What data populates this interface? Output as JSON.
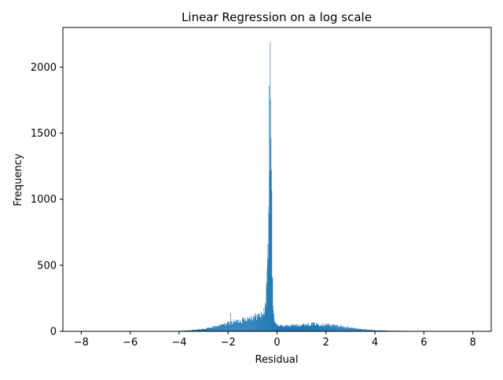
{
  "chart_data": {
    "type": "bar",
    "title": "Linear Regression on a log scale",
    "xlabel": "Residual",
    "ylabel": "Frequency",
    "xlim": [
      -8.75,
      8.75
    ],
    "ylim": [
      0,
      2300
    ],
    "xticks": [
      -8,
      -6,
      -4,
      -2,
      0,
      2,
      4,
      6,
      8
    ],
    "xtick_labels": [
      "−8",
      "−6",
      "−4",
      "−2",
      "0",
      "2",
      "4",
      "6",
      "8"
    ],
    "yticks": [
      0,
      500,
      1000,
      1500,
      2000
    ],
    "ytick_labels": [
      "0",
      "500",
      "1000",
      "1500",
      "2000"
    ],
    "bar_color": "#1f77b4",
    "grid": false,
    "legend": "none",
    "histogram_profile": {
      "x": [
        -8.0,
        -6.0,
        -5.0,
        -4.5,
        -4.0,
        -3.5,
        -3.0,
        -2.5,
        -2.0,
        -1.75,
        -1.5,
        -1.25,
        -1.0,
        -0.8,
        -0.6,
        -0.5,
        -0.45,
        -0.4,
        -0.35,
        -0.3,
        -0.28,
        -0.25,
        -0.22,
        -0.2,
        -0.15,
        -0.1,
        0.0,
        0.2,
        0.5,
        1.0,
        1.5,
        2.0,
        2.5,
        3.0,
        3.5,
        4.0,
        4.5,
        5.0,
        5.5,
        6.0,
        6.5,
        7.0,
        8.0
      ],
      "y": [
        0,
        0,
        0,
        1,
        3,
        8,
        18,
        35,
        60,
        70,
        80,
        95,
        105,
        115,
        125,
        155,
        250,
        450,
        700,
        1400,
        2190,
        1500,
        1000,
        400,
        150,
        80,
        45,
        40,
        42,
        48,
        55,
        50,
        40,
        25,
        15,
        8,
        5,
        3,
        2,
        1,
        0,
        0,
        0
      ]
    },
    "notable_spikes": [
      {
        "x": -1.9,
        "y": 140
      },
      {
        "x": -0.28,
        "y": 2190
      },
      {
        "x": -0.32,
        "y": 1860
      },
      {
        "x": -0.25,
        "y": 1460
      }
    ]
  }
}
